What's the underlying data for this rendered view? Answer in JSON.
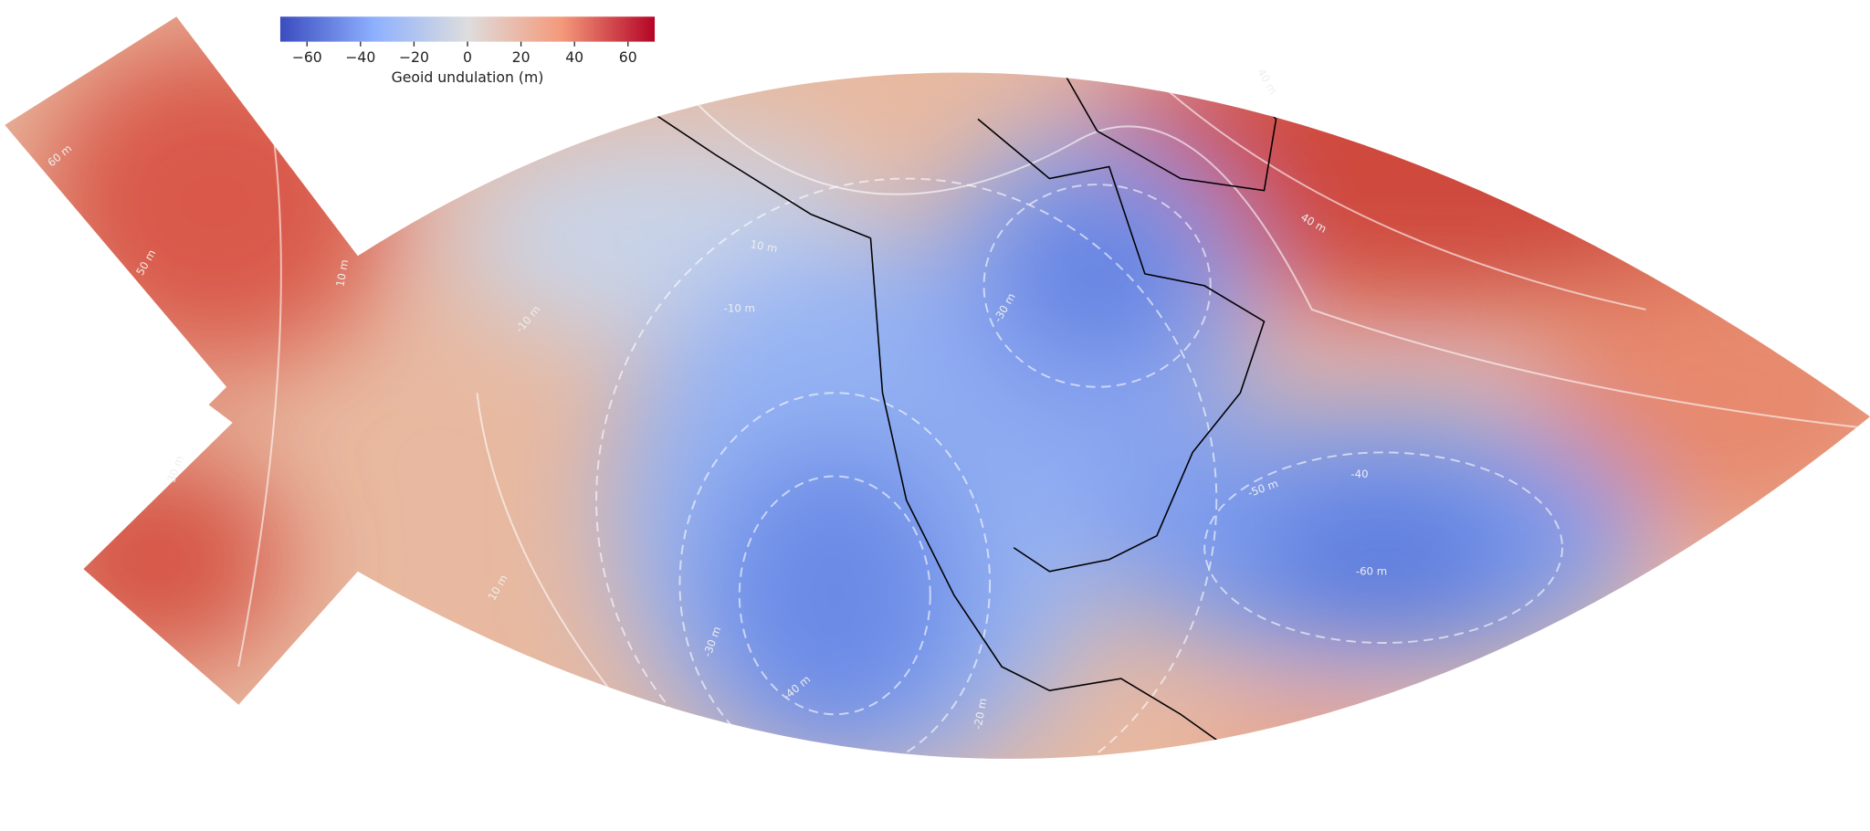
{
  "colorbar": {
    "label": "Geoid undulation (m)",
    "lim": [
      -70,
      70
    ],
    "ticks": [
      {
        "value": -60,
        "label": "−60"
      },
      {
        "value": -40,
        "label": "−40"
      },
      {
        "value": -20,
        "label": "−20"
      },
      0,
      20,
      40,
      60
    ]
  },
  "contour_labels": [
    "60 m",
    "50 m",
    "40 m",
    "30 m",
    "10 m",
    "10 m",
    "-10 m",
    "-10 m",
    "-30 m",
    "-40 m",
    "-30 m",
    "-20 m",
    "-50 m",
    "-40",
    "-60 m",
    "40 m",
    "10 m"
  ]
}
